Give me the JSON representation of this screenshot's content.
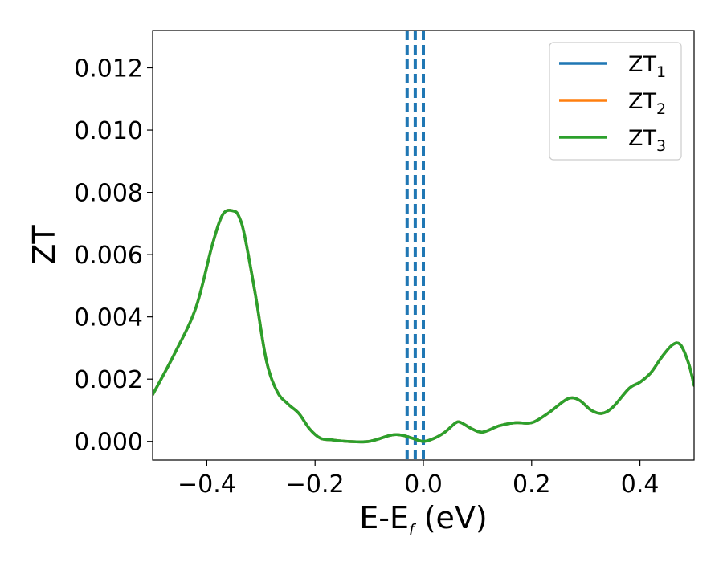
{
  "chart_data": {
    "type": "line",
    "title": "",
    "xlabel": {
      "main": "E-E",
      "sub": "f",
      "suffix": " (eV)"
    },
    "ylabel": "ZT",
    "xlim": [
      -0.5,
      0.5
    ],
    "ylim": [
      -0.0006,
      0.0132
    ],
    "xticks": [
      -0.4,
      -0.2,
      0.0,
      0.2,
      0.4
    ],
    "xtick_labels": [
      "−0.4",
      "−0.2",
      "0.0",
      "0.2",
      "0.4"
    ],
    "yticks": [
      0.0,
      0.002,
      0.004,
      0.006,
      0.008,
      0.01,
      0.012
    ],
    "ytick_labels": [
      "0.000",
      "0.002",
      "0.004",
      "0.006",
      "0.008",
      "0.010",
      "0.012"
    ],
    "grid": false,
    "legend_position": "top-right",
    "legend_entries": [
      {
        "main": "ZT",
        "sub": "1",
        "color": "#1f77b4"
      },
      {
        "main": "ZT",
        "sub": "2",
        "color": "#ff7f0e"
      },
      {
        "main": "ZT",
        "sub": "3",
        "color": "#2ca02c"
      }
    ],
    "vertical_lines": [
      {
        "x": -0.03,
        "style": "dashed",
        "color": "#1f77b4"
      },
      {
        "x": -0.015,
        "style": "dashed",
        "color": "#1f77b4"
      },
      {
        "x": 0.0,
        "style": "dashed",
        "color": "#000000"
      },
      {
        "x": 0.0,
        "style": "dashed",
        "color": "#1f77b4"
      }
    ],
    "x": [
      -0.5,
      -0.46,
      -0.42,
      -0.39,
      -0.37,
      -0.35,
      -0.34,
      -0.33,
      -0.31,
      -0.29,
      -0.27,
      -0.25,
      -0.23,
      -0.21,
      -0.19,
      -0.17,
      -0.14,
      -0.1,
      -0.06,
      -0.04,
      -0.02,
      0.0,
      0.02,
      0.04,
      0.06,
      0.07,
      0.09,
      0.11,
      0.14,
      0.17,
      0.2,
      0.23,
      0.26,
      0.275,
      0.29,
      0.31,
      0.33,
      0.35,
      0.38,
      0.4,
      0.42,
      0.44,
      0.46,
      0.475,
      0.49,
      0.5
    ],
    "series": [
      {
        "name": "ZT1",
        "color": "#1f77b4",
        "values": [
          0.0015,
          0.0028,
          0.0043,
          0.0063,
          0.0073,
          0.0074,
          0.0072,
          0.0066,
          0.0047,
          0.0026,
          0.0016,
          0.0012,
          0.0009,
          0.0004,
          0.0001,
          5e-05,
          0.0,
          0.0,
          0.0002,
          0.0002,
          0.0001,
          0.0,
          0.0001,
          0.0003,
          0.0006,
          0.0006,
          0.0004,
          0.0003,
          0.0005,
          0.0006,
          0.0006,
          0.0009,
          0.0013,
          0.0014,
          0.0013,
          0.001,
          0.0009,
          0.0011,
          0.0017,
          0.0019,
          0.0022,
          0.0027,
          0.0031,
          0.0031,
          0.0025,
          0.0018
        ]
      },
      {
        "name": "ZT2",
        "color": "#ff7f0e",
        "values": [
          0.0015,
          0.0028,
          0.0043,
          0.0063,
          0.0073,
          0.0074,
          0.0072,
          0.0066,
          0.0047,
          0.0026,
          0.0016,
          0.0012,
          0.0009,
          0.0004,
          0.0001,
          5e-05,
          0.0,
          0.0,
          0.0002,
          0.0002,
          0.0001,
          0.0,
          0.0001,
          0.0003,
          0.0006,
          0.0006,
          0.0004,
          0.0003,
          0.0005,
          0.0006,
          0.0006,
          0.0009,
          0.0013,
          0.0014,
          0.0013,
          0.001,
          0.0009,
          0.0011,
          0.0017,
          0.0019,
          0.0022,
          0.0027,
          0.0031,
          0.0031,
          0.0025,
          0.0018
        ]
      },
      {
        "name": "ZT3",
        "color": "#2ca02c",
        "values": [
          0.0015,
          0.0028,
          0.0043,
          0.0063,
          0.0073,
          0.0074,
          0.0072,
          0.0066,
          0.0047,
          0.0026,
          0.0016,
          0.0012,
          0.0009,
          0.0004,
          0.0001,
          5e-05,
          0.0,
          0.0,
          0.0002,
          0.0002,
          0.0001,
          0.0,
          0.0001,
          0.0003,
          0.0006,
          0.0006,
          0.0004,
          0.0003,
          0.0005,
          0.0006,
          0.0006,
          0.0009,
          0.0013,
          0.0014,
          0.0013,
          0.001,
          0.0009,
          0.0011,
          0.0017,
          0.0019,
          0.0022,
          0.0027,
          0.0031,
          0.0031,
          0.0025,
          0.0018
        ]
      }
    ]
  }
}
